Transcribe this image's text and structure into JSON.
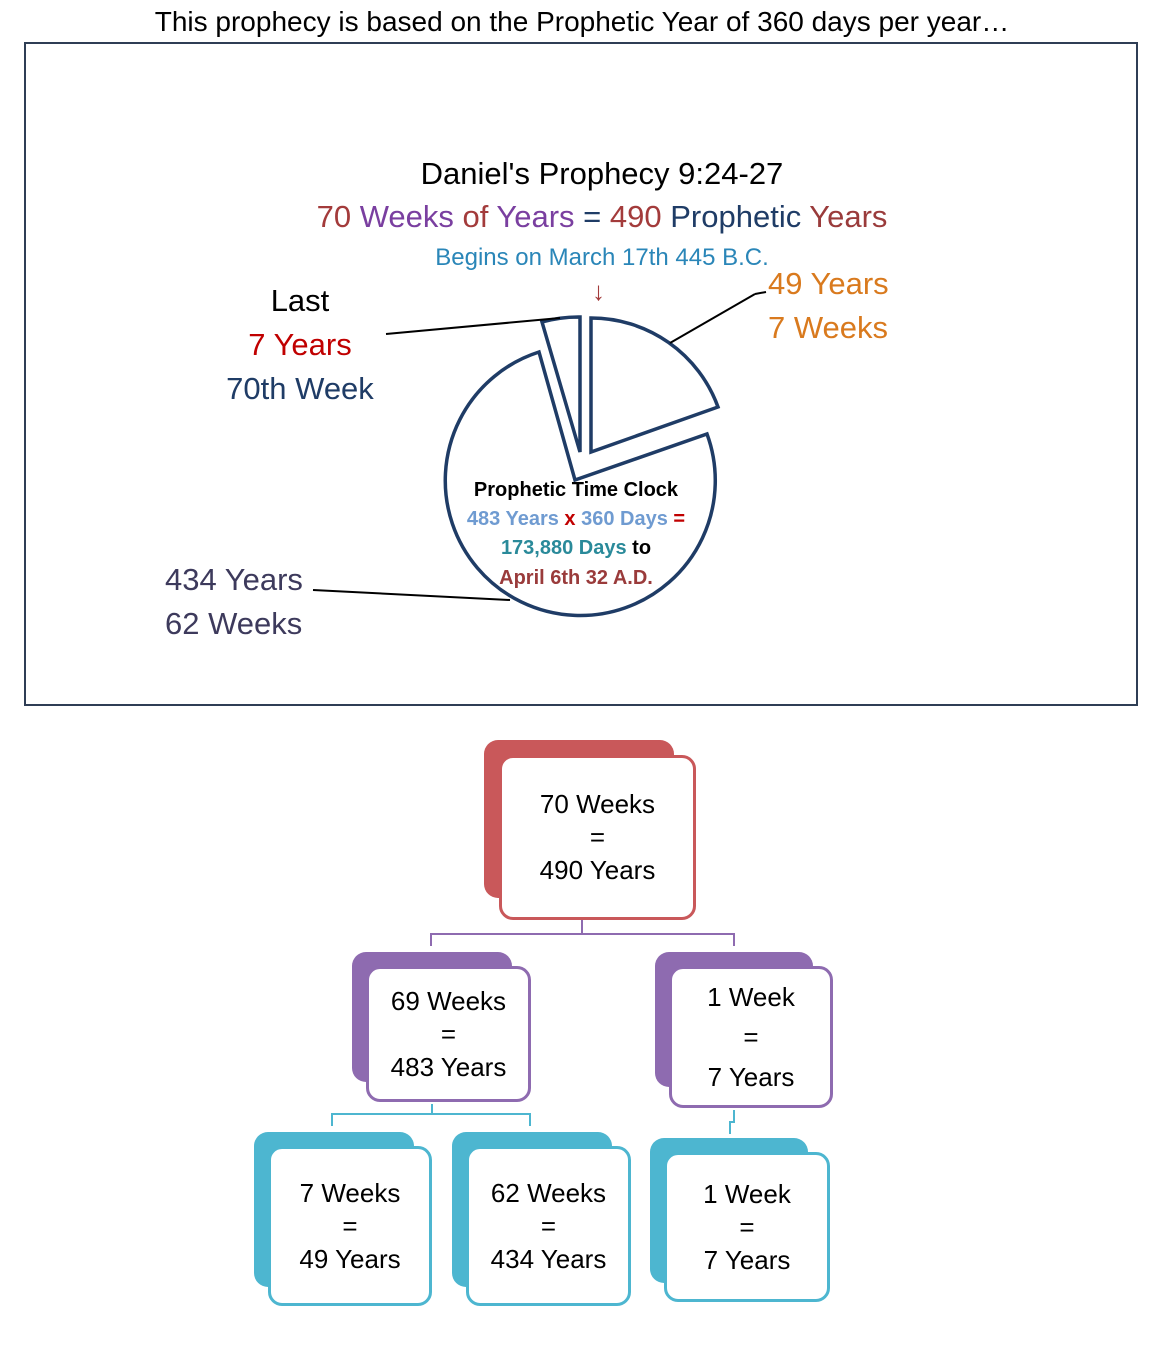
{
  "header": "This prophecy is based on the Prophetic Year of 360 days per year…",
  "clock": {
    "title": "Daniel's Prophecy 9:24-27",
    "subtitle": {
      "part1": "70",
      "part2": " Weeks",
      "part3": " of",
      "part4": " Years",
      "part5": " = ",
      "part6": "490",
      "part7": " Prophetic",
      "part8": " Years"
    },
    "begins": "Begins on March 17th 445 B.C.",
    "arrow": "↓",
    "label_last": {
      "line1": "Last",
      "line2": "7 Years",
      "line3": "70th Week"
    },
    "label_49": {
      "line1": "49 Years",
      "line2": "7 Weeks"
    },
    "label_434": {
      "line1": "434 Years",
      "line2": "62 Weeks"
    },
    "center": {
      "line1": "Prophetic Time Clock",
      "line2_a": "483 Years",
      "line2_b": " x ",
      "line2_c": "360 Days",
      "line2_d": " =",
      "line3_a": "173,880 Days",
      "line3_b": " to",
      "line4": "April 6th 32 A.D."
    },
    "colors": {
      "navy": "#1f3c66",
      "orange": "#d97a1e",
      "red": "#c00000",
      "teal": "#2a86b8",
      "purple": "#7a3fa0",
      "lightblue": "#6f9bd1"
    }
  },
  "tree": {
    "root": {
      "line1": "70 Weeks",
      "line2": "=",
      "line3": "490 Years",
      "color": "#c9585a"
    },
    "level2": [
      {
        "line1": "69 Weeks",
        "line2": "=",
        "line3": "483 Years",
        "color": "#8e6bb0"
      },
      {
        "line1": "1 Week",
        "line2": "=",
        "line3": "7 Years",
        "color": "#8e6bb0"
      }
    ],
    "level3": [
      {
        "line1": "7 Weeks",
        "line2": "=",
        "line3": "49 Years",
        "color": "#4db6d0"
      },
      {
        "line1": "62 Weeks",
        "line2": "=",
        "line3": "434 Years",
        "color": "#4db6d0"
      },
      {
        "line1": "1 Week",
        "line2": "=",
        "line3": "7 Years",
        "color": "#4db6d0"
      }
    ]
  }
}
